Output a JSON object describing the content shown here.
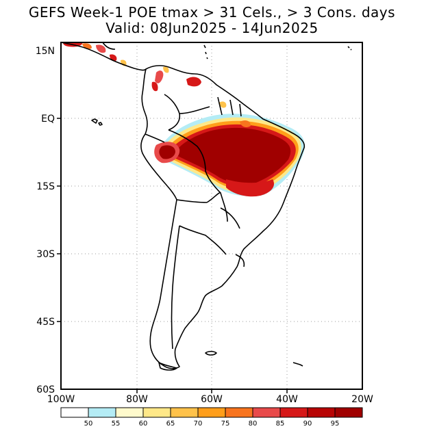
{
  "header": {
    "title": "GEFS Week-1 POE tmax > 31 Cels., > 3 Cons. days",
    "subtitle": "Valid: 08Jun2025 - 14Jun2025"
  },
  "axes": {
    "lon_labels": [
      "100W",
      "80W",
      "60W",
      "40W",
      "20W"
    ],
    "lat_labels": [
      "15N",
      "EQ",
      "15S",
      "30S",
      "45S",
      "60S"
    ],
    "lon_range": [
      -100,
      -20
    ],
    "lat_range": [
      15,
      -60
    ]
  },
  "colorbar": {
    "labels": [
      "50",
      "55",
      "60",
      "65",
      "70",
      "75",
      "80",
      "85",
      "90",
      "95"
    ],
    "colors": [
      "#ffffff",
      "#b4ecf5",
      "#fffacc",
      "#ffe888",
      "#ffc24a",
      "#ff9e1a",
      "#f8741e",
      "#e84a4a",
      "#d61818",
      "#b80404",
      "#a00000"
    ]
  },
  "style": {
    "land_outline": "#000000",
    "grid": "#9a9a9a"
  }
}
